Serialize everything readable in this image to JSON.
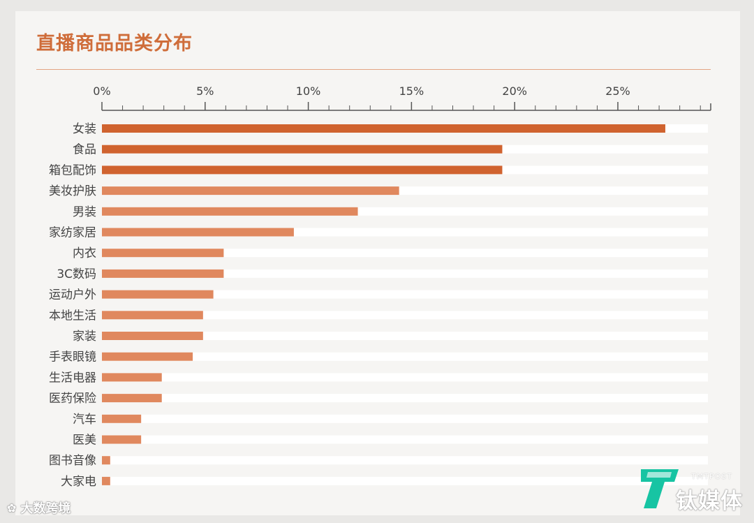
{
  "chart_data": {
    "type": "bar",
    "orientation": "horizontal",
    "title": "直播商品品类分布",
    "xlim": [
      0,
      29.5
    ],
    "x_ticks": [
      0,
      5,
      10,
      15,
      20,
      25
    ],
    "x_tick_labels": [
      "0%",
      "5%",
      "10%",
      "15%",
      "20%",
      "25%"
    ],
    "categories": [
      "女装",
      "食品",
      "箱包配饰",
      "美妆护肤",
      "男装",
      "家纺家居",
      "内衣",
      "3C数码",
      "运动户外",
      "本地生活",
      "家装",
      "手表眼镜",
      "生活电器",
      "医药保险",
      "汽车",
      "医美",
      "图书音像",
      "大家电"
    ],
    "values": [
      27.3,
      19.4,
      19.4,
      14.4,
      12.4,
      9.3,
      5.9,
      5.9,
      5.4,
      4.9,
      4.9,
      4.4,
      2.9,
      2.9,
      1.9,
      1.9,
      0.4,
      0.4
    ],
    "colors": {
      "dark": "#d0632f",
      "light": "#e0885e",
      "track": "#ffffff",
      "axis": "#555555"
    }
  },
  "watermark": {
    "left": "大数跨境",
    "left_icon": "weibo-icon"
  },
  "brand": {
    "sub": "TMTPOST",
    "name": "钛媒体",
    "mark_icon": "tmtpost-logo-icon"
  }
}
